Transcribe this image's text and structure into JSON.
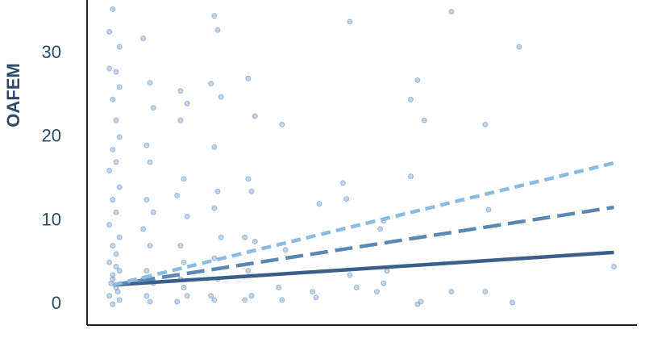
{
  "chart_data": {
    "type": "scatter",
    "ylabel": "OAFEM",
    "xlim": [
      -0.71,
      15.48
    ],
    "ylim": [
      -2.5,
      36.4
    ],
    "yticks": [
      0,
      10,
      20,
      30
    ],
    "grid": false,
    "series": [
      {
        "color": "#5b87b5",
        "x": [
          0,
          -0.1,
          0.2,
          -0.1,
          0.1,
          0.2,
          0,
          0.1,
          0.2,
          0,
          0.1,
          -0.1,
          0.2,
          0,
          0.1,
          -0.1,
          0.2,
          0,
          0.1,
          -0.1,
          0.2,
          0,
          0.1,
          -0.1,
          0.2,
          0,
          0.15,
          0,
          0.1,
          -0.05,
          0.9,
          1.1,
          1.2,
          1,
          1.1,
          1,
          1.2,
          0.9,
          1.1,
          1,
          1.2,
          1,
          1.1,
          0.9,
          2,
          2.2,
          2,
          2.1,
          1.9,
          2.2,
          2,
          2.1,
          2,
          2.2,
          1.9,
          2.1,
          3,
          3.1,
          2.9,
          3.2,
          3,
          3.1,
          3,
          3.2,
          3,
          3.1,
          2.9,
          3,
          4,
          4.2,
          4,
          4.1,
          3.9,
          4.2,
          4,
          4.1,
          3.9,
          5,
          5.1,
          4.9,
          5,
          6.1,
          5.9,
          6,
          7,
          6.8,
          6.9,
          7,
          7.2,
          8,
          7.9,
          8.1,
          7.8,
          8,
          9,
          8.8,
          9.2,
          9,
          9.1,
          8.8,
          10,
          10,
          11,
          11,
          11.1,
          12,
          11.8,
          14.8
        ],
        "values": [
          35.3,
          32.6,
          30.8,
          28.2,
          27.8,
          26,
          24.5,
          22,
          20,
          18.5,
          17,
          16,
          14,
          12.5,
          11,
          9.5,
          8,
          7,
          6,
          5,
          4,
          3,
          2,
          1,
          0.5,
          0,
          1.5,
          3.5,
          4.5,
          2.5,
          31.8,
          26.5,
          23.5,
          19,
          17,
          12.5,
          11,
          9,
          7,
          4,
          2.5,
          1,
          0.3,
          3,
          25.5,
          24,
          22,
          15,
          13,
          10.5,
          7,
          5,
          3,
          1,
          0.3,
          2,
          34.5,
          32.8,
          26.4,
          24.8,
          18.8,
          13.5,
          11.5,
          8,
          5.5,
          3,
          1,
          0.5,
          27,
          22.5,
          15,
          13.5,
          8,
          7.5,
          4,
          1,
          0.5,
          21.5,
          6.5,
          2,
          0.5,
          12,
          1.5,
          0.8,
          33.8,
          14.5,
          12.6,
          3.5,
          2,
          10,
          9,
          4,
          1.5,
          2.5,
          26.8,
          24.5,
          22,
          0,
          0.3,
          15.3,
          35,
          1.5,
          21.5,
          1.5,
          11.3,
          30.8,
          0.2,
          4.5
        ]
      }
    ],
    "fits": [
      {
        "color": "#3a5f8a",
        "dash": "solid",
        "x": [
          0,
          14.8
        ],
        "values": [
          2.3,
          6.2
        ]
      },
      {
        "color": "#5b87b5",
        "dash": "dashed",
        "x": [
          0,
          14.8
        ],
        "values": [
          2.3,
          11.6
        ]
      },
      {
        "color": "#8bbbe0",
        "dash": "dotted",
        "x": [
          0,
          14.8
        ],
        "values": [
          2.3,
          16.9
        ]
      }
    ]
  }
}
